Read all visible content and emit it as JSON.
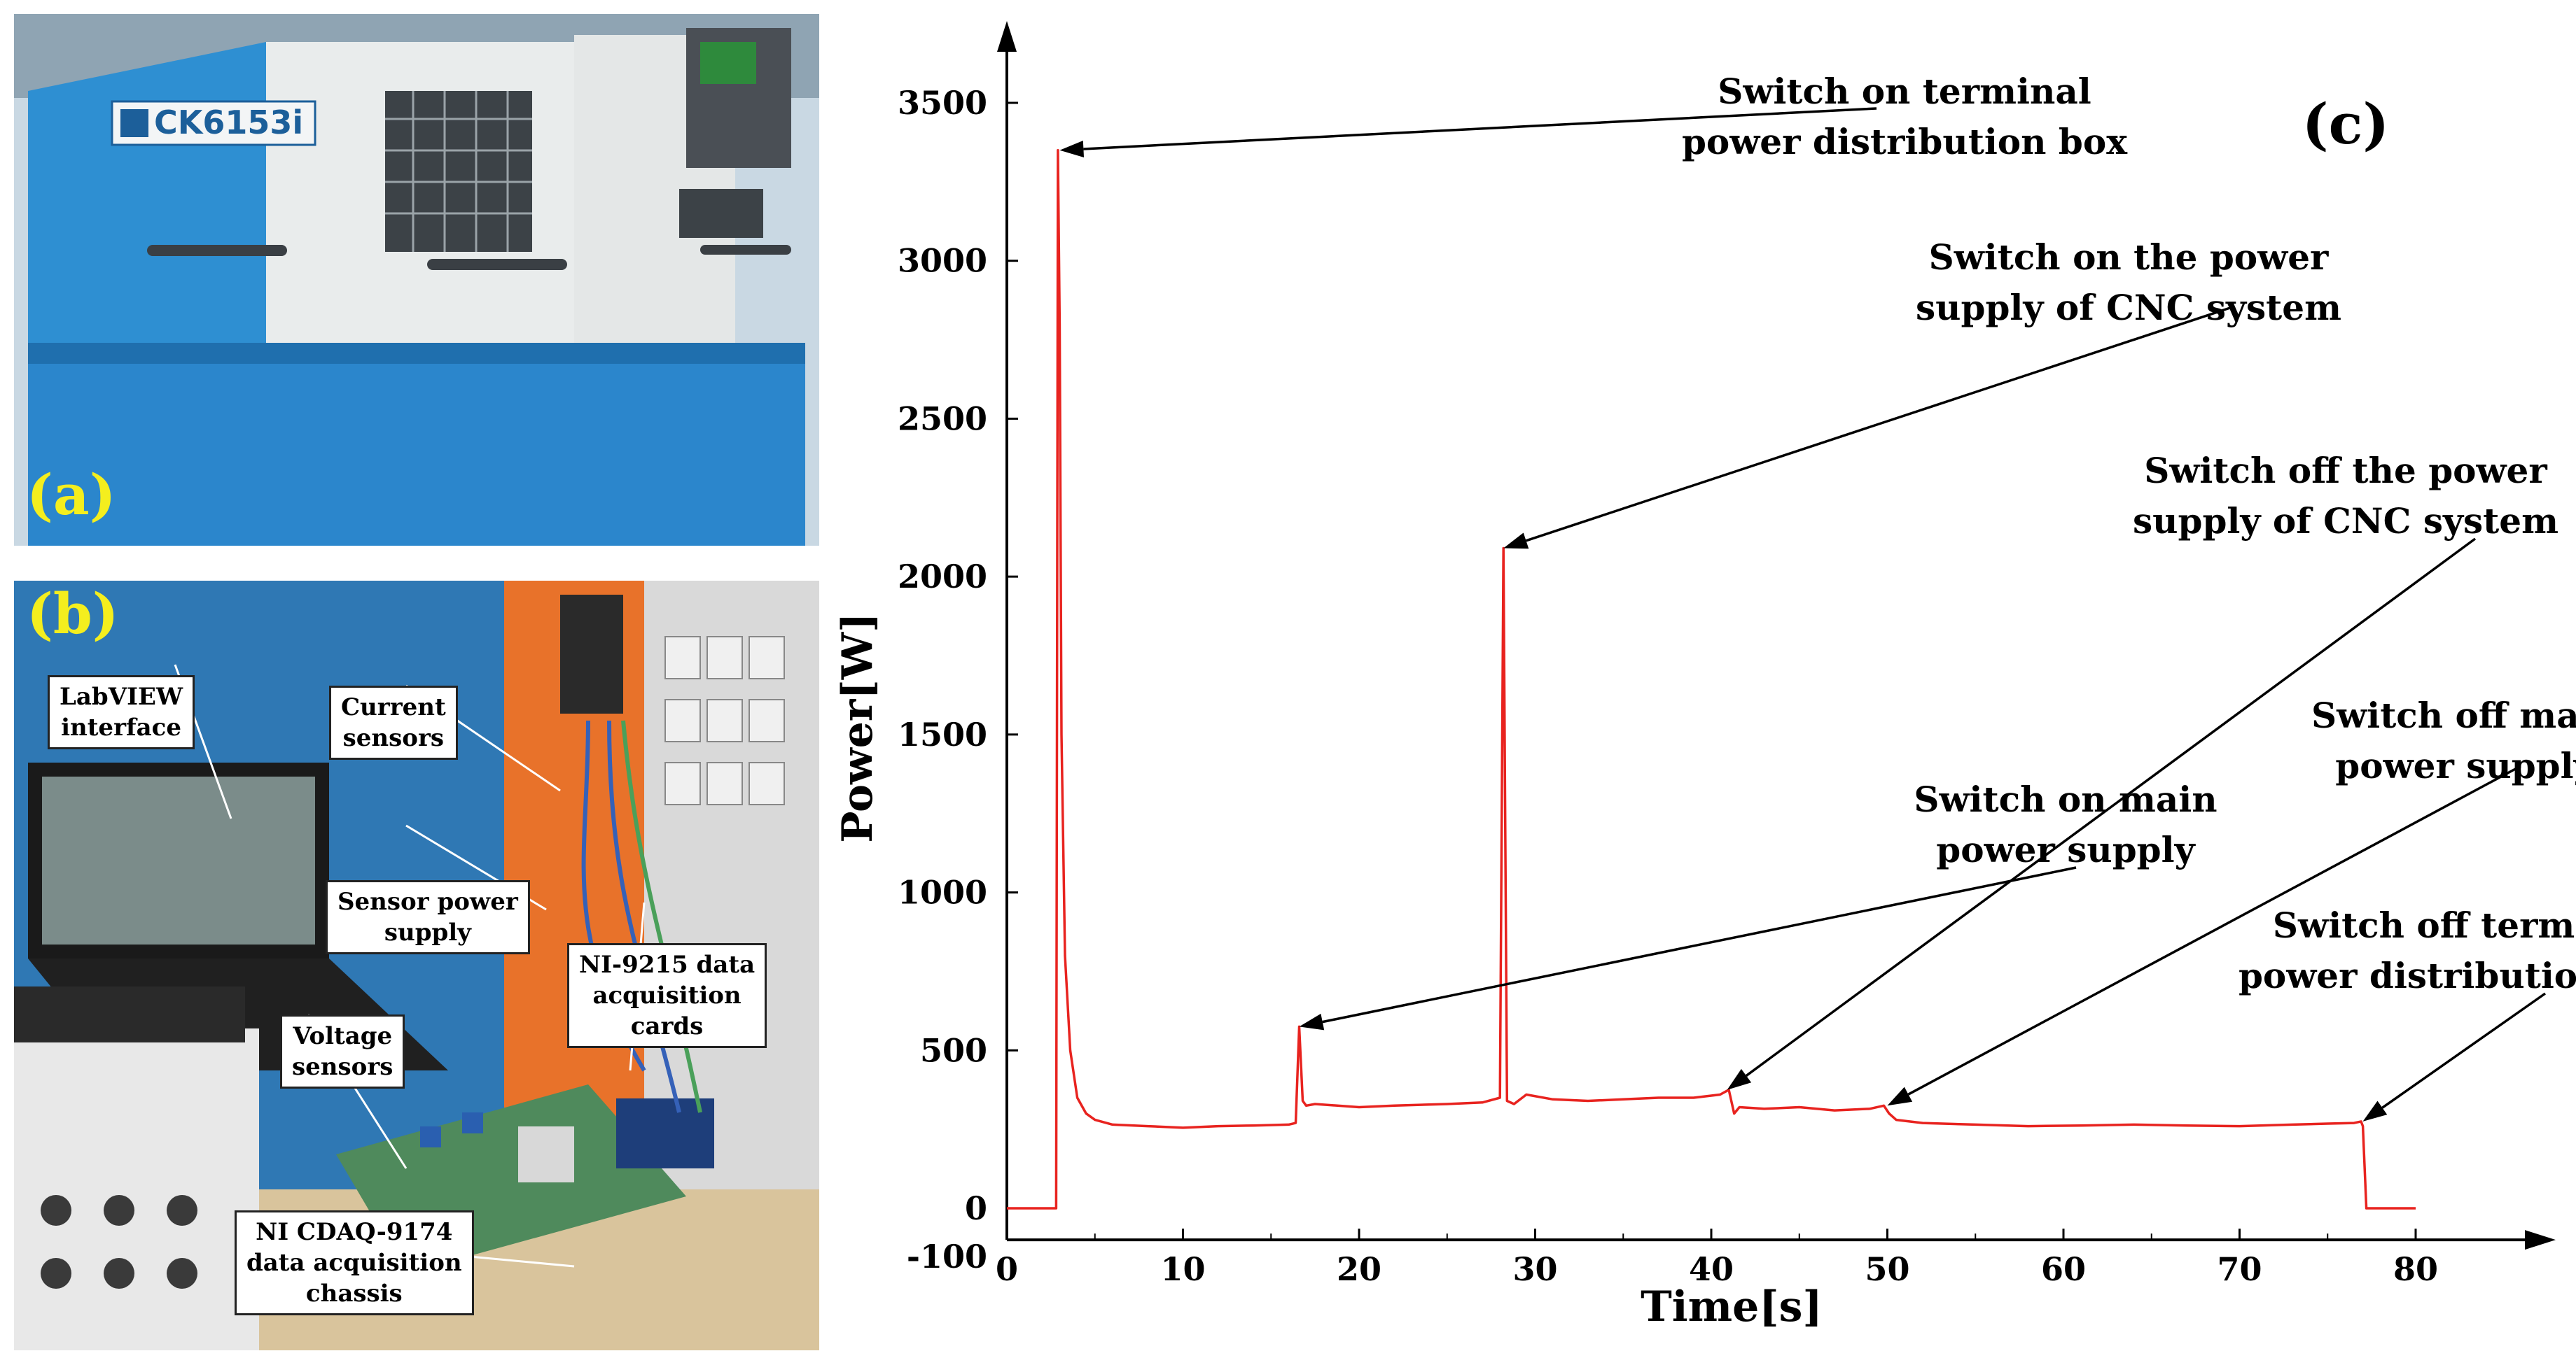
{
  "panel_a": {
    "letter": "(a)",
    "machine_badge": "CK6153i"
  },
  "panel_b": {
    "letter": "(b)",
    "callouts": [
      {
        "id": "labview",
        "text": "LabVIEW\ninterface"
      },
      {
        "id": "current",
        "text": "Current\nsensors"
      },
      {
        "id": "sensorpower",
        "text": "Sensor power\nsupply"
      },
      {
        "id": "ni9215",
        "text": "NI-9215 data\nacquisition\ncards"
      },
      {
        "id": "voltage",
        "text": "Voltage\nsensors"
      },
      {
        "id": "cdaq",
        "text": "NI CDAQ-9174\ndata acquisition\nchassis"
      }
    ]
  },
  "chart_data": {
    "type": "line",
    "panel_label": "(c)",
    "xlabel": "Time[s]",
    "ylabel": "Power[W]",
    "xlim": [
      0,
      80
    ],
    "ylim": [
      -100,
      3500
    ],
    "xticks": [
      0,
      10,
      20,
      30,
      40,
      50,
      60,
      70,
      80
    ],
    "yticks": [
      -100,
      0,
      500,
      1000,
      1500,
      2000,
      2500,
      3000,
      3500
    ],
    "line_color": "#e8231f",
    "series": [
      {
        "x": [
          0,
          2.8,
          2.9,
          3.0,
          3.1,
          3.3,
          3.6,
          4.0,
          4.5,
          5.0,
          6,
          8,
          10,
          12,
          14,
          16,
          16.4,
          16.6,
          16.8,
          17.0,
          17.5,
          20,
          22,
          25,
          27,
          28.0,
          28.2,
          28.4,
          28.8,
          29.5,
          31,
          33,
          35,
          37,
          39,
          40.5,
          41.0,
          41.3,
          41.6,
          43,
          45,
          47,
          49,
          49.8,
          50.1,
          50.5,
          52,
          55,
          58,
          61,
          64,
          67,
          70,
          73,
          75,
          76.5,
          76.9,
          77.0,
          77.2,
          80
        ],
        "y": [
          0,
          0,
          3350,
          2800,
          1500,
          800,
          500,
          350,
          300,
          280,
          265,
          260,
          255,
          260,
          262,
          265,
          270,
          575,
          340,
          325,
          330,
          320,
          325,
          330,
          335,
          350,
          2090,
          340,
          330,
          360,
          345,
          340,
          345,
          350,
          350,
          360,
          375,
          300,
          320,
          315,
          320,
          310,
          315,
          325,
          300,
          280,
          270,
          265,
          260,
          262,
          265,
          262,
          260,
          265,
          268,
          270,
          275,
          260,
          0,
          0
        ]
      }
    ],
    "annotations": [
      {
        "text": "Switch on terminal\npower distribution box"
      },
      {
        "text": "Switch on the power\nsupply  of CNC system"
      },
      {
        "text": "Switch off the power\nsupply  of CNC system"
      },
      {
        "text": "Switch off main\npower supply"
      },
      {
        "text": "Switch on main\npower supply"
      },
      {
        "text": "Switch off terminal\npower distribution box"
      }
    ]
  }
}
